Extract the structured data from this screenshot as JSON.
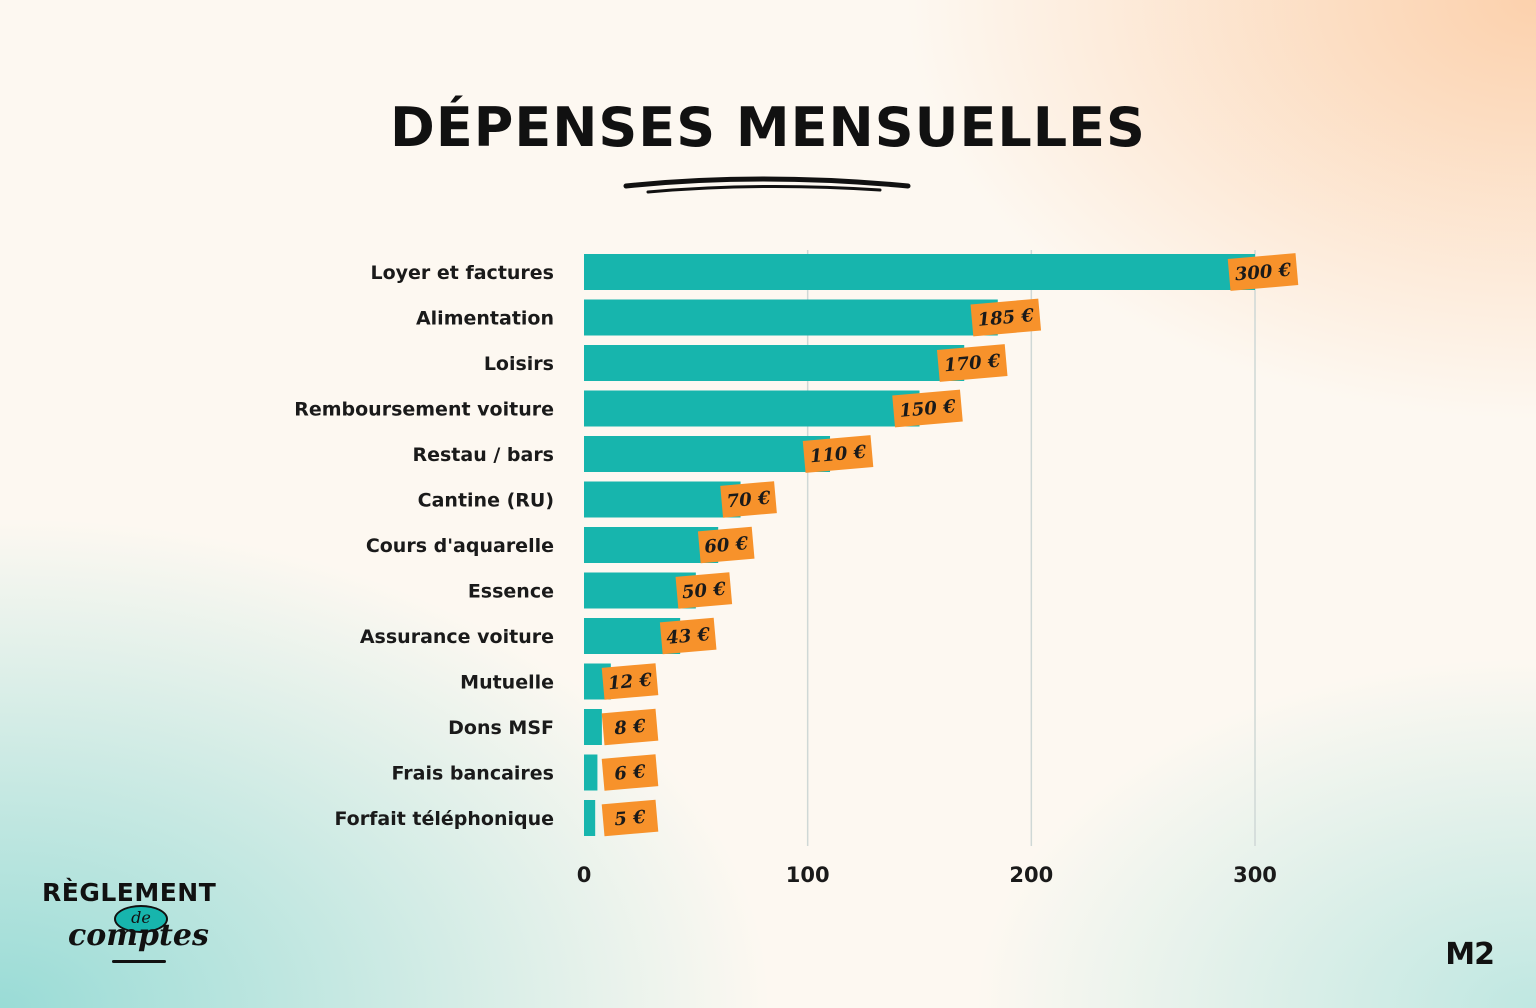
{
  "chart_data": {
    "type": "bar",
    "orientation": "horizontal",
    "title": "DÉPENSES MENSUELLES",
    "categories": [
      "Loyer et factures",
      "Alimentation",
      "Loisirs",
      "Remboursement voiture",
      "Restau / bars",
      "Cantine (RU)",
      "Cours d'aquarelle",
      "Essence",
      "Assurance voiture",
      "Mutuelle",
      "Dons MSF",
      "Frais bancaires",
      "Forfait téléphonique"
    ],
    "values": [
      300,
      185,
      170,
      150,
      110,
      70,
      60,
      50,
      43,
      12,
      8,
      6,
      5
    ],
    "value_labels": [
      "300 €",
      "185 €",
      "170 €",
      "150 €",
      "110 €",
      "70 €",
      "60 €",
      "50 €",
      "43 €",
      "12 €",
      "8 €",
      "6 €",
      "5 €"
    ],
    "xticks": [
      0,
      100,
      200,
      300
    ],
    "xlim": [
      0,
      300
    ],
    "grid": true,
    "colors": {
      "bar": "#17b5ad",
      "label_bg": "#f7922b",
      "text": "#1a1a1a"
    }
  },
  "branding": {
    "logo_line1": "RÈGLEMENT",
    "logo_line2": "de",
    "logo_line3": "comptes",
    "corner_logo": "M2"
  }
}
